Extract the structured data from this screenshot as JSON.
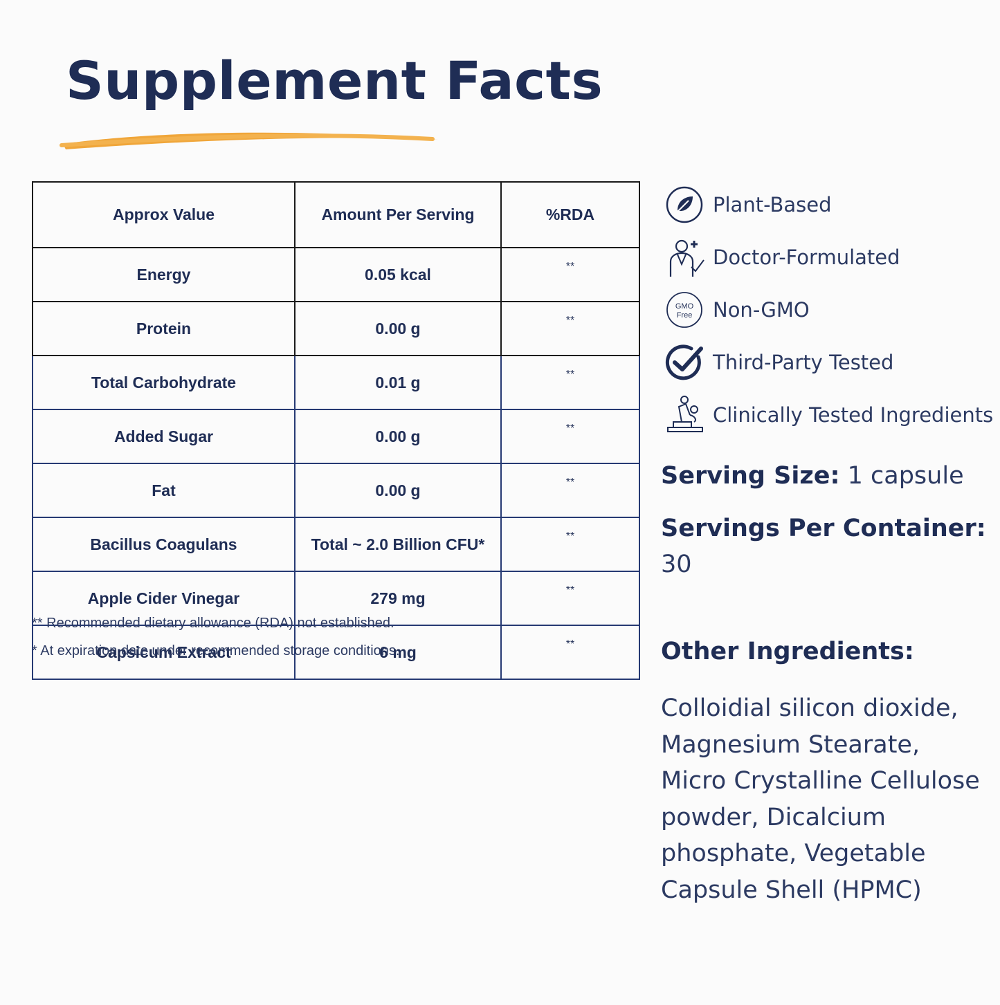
{
  "title": "Supplement Facts",
  "colors": {
    "navy": "#1f2d55",
    "accent": "#f0a63a",
    "border": "#1a1a1a"
  },
  "table": {
    "headers": [
      "Approx Value",
      "Amount Per Serving",
      "%RDA"
    ],
    "rows": [
      [
        "Energy",
        "0.05 kcal",
        "**"
      ],
      [
        "Protein",
        "0.00 g",
        "**"
      ],
      [
        "Total Carbohydrate",
        "0.01 g",
        "**"
      ],
      [
        "Added Sugar",
        "0.00 g",
        "**"
      ],
      [
        "Fat",
        "0.00 g",
        "**"
      ],
      [
        "Bacillus Coagulans",
        "Total ~ 2.0 Billion CFU*",
        "**"
      ],
      [
        "Apple Cider Vinegar",
        "279 mg",
        "**"
      ],
      [
        "Capsicum Extract",
        "6 mg",
        "**"
      ]
    ]
  },
  "footnotes": [
    "** Recommended dietary allowance (RDA) not established.",
    "* At expiration date under recommended storage conditions."
  ],
  "badges": [
    {
      "icon": "leaf-check-icon",
      "label": "Plant-Based"
    },
    {
      "icon": "doctor-icon",
      "label": "Doctor-Formulated"
    },
    {
      "icon": "gmo-free-icon",
      "label": "Non-GMO",
      "icon_text": [
        "GMO",
        "Free"
      ]
    },
    {
      "icon": "check-circle-icon",
      "label": "Third-Party Tested"
    },
    {
      "icon": "microscope-icon",
      "label": "Clinically Tested Ingredients"
    }
  ],
  "serving": {
    "size_label": "Serving Size:",
    "size_value": "1 capsule",
    "per_container_label": "Servings Per Container:",
    "per_container_value": "30"
  },
  "other_ingredients": {
    "label": "Other Ingredients:",
    "lines": [
      "Colloidial silicon dioxide,",
      "Magnesium Stearate,",
      "Micro Crystalline Cellulose",
      "powder, Dicalcium",
      "phosphate, Vegetable",
      "Capsule Shell (HPMC)"
    ]
  }
}
